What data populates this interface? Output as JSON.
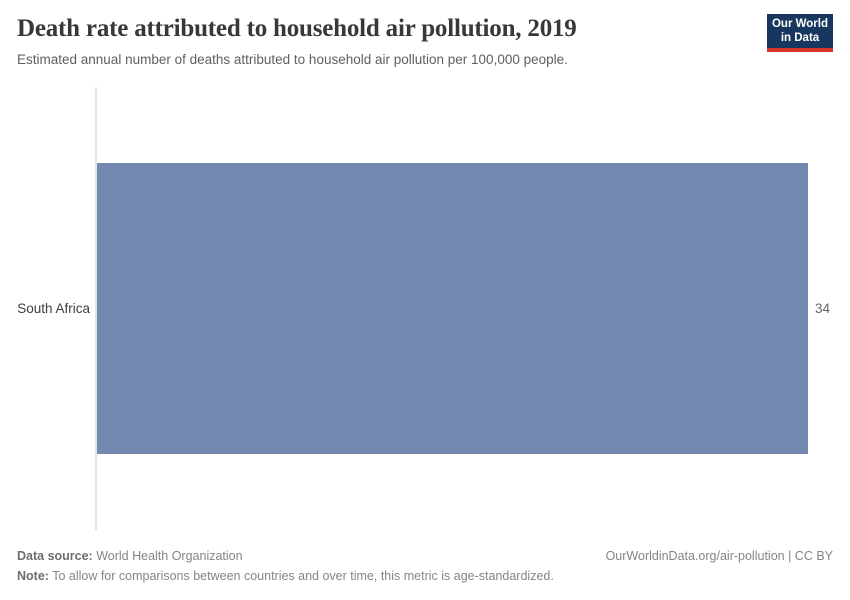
{
  "header": {
    "title": "Death rate attributed to household air pollution, 2019",
    "subtitle": "Estimated annual number of deaths attributed to household air pollution per 100,000 people.",
    "logo": {
      "line1": "Our World",
      "line2": "in Data"
    }
  },
  "chart": {
    "entity_label": "South Africa",
    "value_label": "34"
  },
  "footer": {
    "data_source_label": "Data source:",
    "data_source_value": " World Health Organization",
    "note_label": "Note:",
    "note_value": " To allow for comparisons between countries and over time, this metric is age-standardized.",
    "credit": "OurWorldinData.org/air-pollution | CC BY"
  },
  "chart_data": {
    "type": "bar",
    "orientation": "horizontal",
    "title": "Death rate attributed to household air pollution, 2019",
    "subtitle": "Estimated annual number of deaths attributed to household air pollution per 100,000 people.",
    "categories": [
      "South Africa"
    ],
    "values": [
      34
    ],
    "value_labels": [
      "34"
    ],
    "xlabel": "",
    "ylabel": "",
    "xlim": [
      0,
      34
    ],
    "grid": false,
    "legend": false,
    "bar_color": "#7288ae"
  },
  "colors": {
    "bar": "#7288ae",
    "axis_line": "#e3e3e3",
    "logo_background": "#18375f",
    "logo_accent": "#d8352e",
    "title_text": "#383838",
    "subtitle_text": "#5f5f5f",
    "footer_text": "#858585"
  }
}
